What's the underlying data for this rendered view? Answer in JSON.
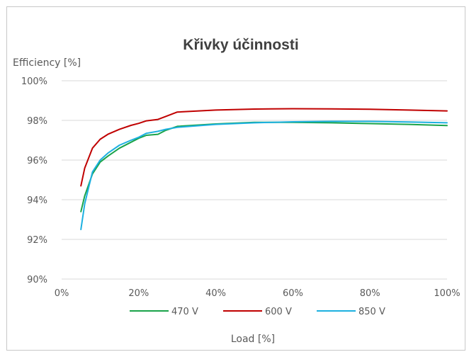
{
  "chart_data": {
    "type": "line",
    "title": "Křivky účinnosti",
    "ylabel": "Efficiency [%]",
    "xlabel": "Load [%]",
    "xlim": [
      0,
      100
    ],
    "ylim": [
      90,
      100
    ],
    "x_ticks": [
      "0%",
      "20%",
      "40%",
      "60%",
      "80%",
      "100%"
    ],
    "y_ticks": [
      "90%",
      "92%",
      "94%",
      "96%",
      "98%",
      "100%"
    ],
    "grid": true,
    "legend_position": "bottom",
    "series": [
      {
        "name": "470 V",
        "color": "#1aa34a",
        "x": [
          5,
          6,
          8,
          10,
          12,
          15,
          18,
          20,
          22,
          25,
          27,
          30,
          40,
          50,
          60,
          70,
          80,
          90,
          100
        ],
        "y": [
          93.4,
          94.2,
          95.3,
          95.9,
          96.2,
          96.6,
          96.9,
          97.1,
          97.25,
          97.3,
          97.5,
          97.7,
          97.82,
          97.9,
          97.9,
          97.88,
          97.84,
          97.8,
          97.74
        ]
      },
      {
        "name": "600 V",
        "color": "#c00000",
        "x": [
          5,
          6,
          8,
          10,
          12,
          15,
          18,
          20,
          22,
          25,
          27,
          30,
          40,
          50,
          60,
          70,
          80,
          90,
          100
        ],
        "y": [
          94.7,
          95.6,
          96.6,
          97.05,
          97.3,
          97.55,
          97.75,
          97.85,
          97.98,
          98.05,
          98.2,
          98.42,
          98.52,
          98.57,
          98.59,
          98.58,
          98.56,
          98.52,
          98.48
        ]
      },
      {
        "name": "850 V",
        "color": "#1cb0e0",
        "x": [
          5,
          6,
          8,
          10,
          12,
          15,
          18,
          20,
          22,
          25,
          27,
          30,
          40,
          50,
          60,
          70,
          80,
          90,
          100
        ],
        "y": [
          92.5,
          93.8,
          95.4,
          96.0,
          96.35,
          96.75,
          97.0,
          97.15,
          97.35,
          97.45,
          97.55,
          97.65,
          97.8,
          97.88,
          97.93,
          97.95,
          97.95,
          97.92,
          97.88
        ]
      }
    ]
  },
  "colors": {
    "gridline": "#d9d9d9",
    "axis_text": "#595959",
    "title_text": "#404040"
  }
}
